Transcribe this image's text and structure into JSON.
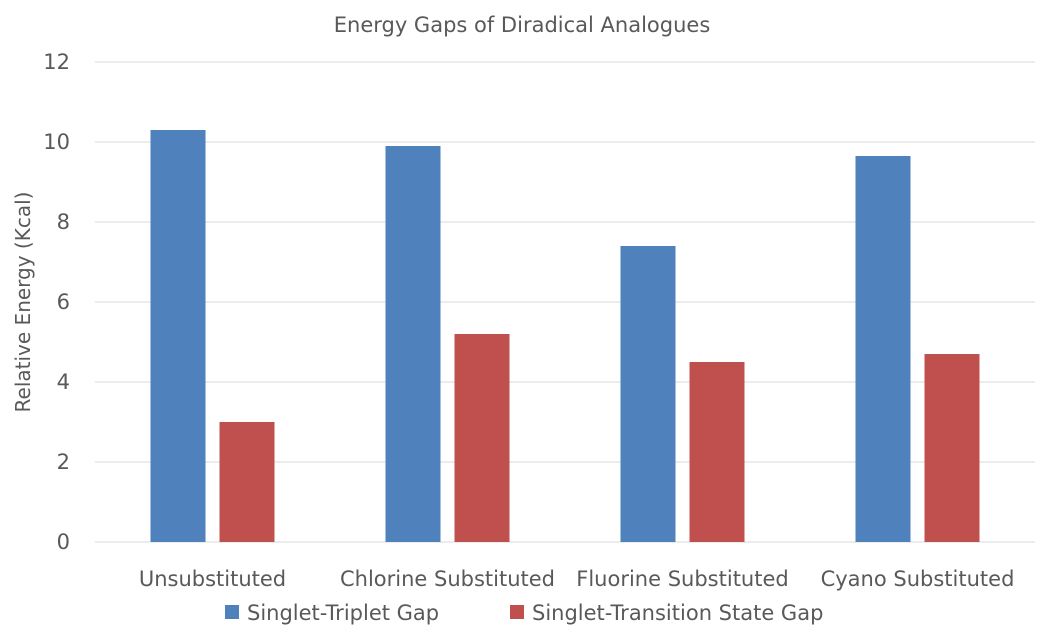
{
  "chart_data": {
    "type": "bar",
    "title": "Energy Gaps of Diradical Analogues",
    "ylabel": "Relative Energy (Kcal)",
    "xlabel": "",
    "ylim": [
      0,
      12
    ],
    "yticks": [
      0,
      2,
      4,
      6,
      8,
      10,
      12
    ],
    "grid": true,
    "legend_position": "bottom",
    "categories": [
      "Unsubstituted",
      "Chlorine Substituted",
      "Fluorine Substituted",
      "Cyano Substituted"
    ],
    "series": [
      {
        "name": "Singlet-Triplet Gap",
        "color": "#4f81bd",
        "values": [
          10.3,
          9.9,
          7.4,
          9.65
        ]
      },
      {
        "name": "Singlet-Transition State Gap",
        "color": "#c0504d",
        "values": [
          3.0,
          5.2,
          4.5,
          4.7
        ]
      }
    ]
  }
}
